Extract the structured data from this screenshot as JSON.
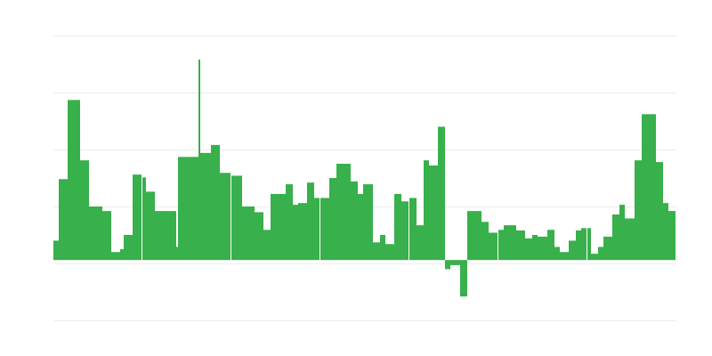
{
  "chart_data": {
    "type": "bar",
    "title": "",
    "xlabel": "",
    "ylabel": "",
    "grid": true,
    "bar_color": "#38b04b",
    "grid_color": "#ececec",
    "ylim": [
      -1.06,
      3.94
    ],
    "xlim": [
      0,
      350
    ],
    "bars": [
      {
        "x": 0,
        "w": 3,
        "y": 0.34
      },
      {
        "x": 3,
        "w": 5,
        "y": 1.42
      },
      {
        "x": 8,
        "w": 7,
        "y": 2.81
      },
      {
        "x": 15,
        "w": 5,
        "y": 1.75
      },
      {
        "x": 20,
        "w": 7.5,
        "y": 0.94
      },
      {
        "x": 27.5,
        "w": 5,
        "y": 0.86
      },
      {
        "x": 32.5,
        "w": 5,
        "y": 0.14
      },
      {
        "x": 37.5,
        "w": 2,
        "y": 0.19
      },
      {
        "x": 39.5,
        "w": 5,
        "y": 0.44
      },
      {
        "x": 44.5,
        "w": 5,
        "y": 1.5
      },
      {
        "x": 50,
        "w": 2,
        "y": 1.45
      },
      {
        "x": 52,
        "w": 5,
        "y": 1.2
      },
      {
        "x": 57,
        "w": 12,
        "y": 0.86
      },
      {
        "x": 69,
        "w": 1,
        "y": 0.23
      },
      {
        "x": 70,
        "w": 11.5,
        "y": 1.81
      },
      {
        "x": 81.5,
        "w": 1,
        "y": 3.52
      },
      {
        "x": 82.5,
        "w": 6,
        "y": 1.88
      },
      {
        "x": 88.5,
        "w": 5,
        "y": 2.02
      },
      {
        "x": 93.5,
        "w": 6,
        "y": 1.53
      },
      {
        "x": 100,
        "w": 6,
        "y": 1.48
      },
      {
        "x": 106,
        "w": 7,
        "y": 0.94
      },
      {
        "x": 113,
        "w": 5,
        "y": 0.84
      },
      {
        "x": 118,
        "w": 4,
        "y": 0.53
      },
      {
        "x": 122,
        "w": 8.5,
        "y": 1.16
      },
      {
        "x": 130.5,
        "w": 4,
        "y": 1.33
      },
      {
        "x": 134.5,
        "w": 3,
        "y": 0.97
      },
      {
        "x": 137.5,
        "w": 5,
        "y": 1.0
      },
      {
        "x": 142.5,
        "w": 4,
        "y": 1.36
      },
      {
        "x": 146.5,
        "w": 3,
        "y": 1.09
      },
      {
        "x": 150,
        "w": 5,
        "y": 1.09
      },
      {
        "x": 155,
        "w": 4,
        "y": 1.44
      },
      {
        "x": 159,
        "w": 8,
        "y": 1.69
      },
      {
        "x": 167,
        "w": 4,
        "y": 1.38
      },
      {
        "x": 171,
        "w": 3,
        "y": 1.16
      },
      {
        "x": 174,
        "w": 5.5,
        "y": 1.33
      },
      {
        "x": 179.5,
        "w": 4,
        "y": 0.31
      },
      {
        "x": 183.5,
        "w": 3,
        "y": 0.44
      },
      {
        "x": 186.5,
        "w": 5,
        "y": 0.28
      },
      {
        "x": 191.5,
        "w": 4,
        "y": 1.16
      },
      {
        "x": 195.5,
        "w": 4,
        "y": 1.03
      },
      {
        "x": 200,
        "w": 4,
        "y": 1.09
      },
      {
        "x": 204,
        "w": 4,
        "y": 0.61
      },
      {
        "x": 208,
        "w": 3,
        "y": 1.75
      },
      {
        "x": 211,
        "w": 5,
        "y": 1.66
      },
      {
        "x": 216,
        "w": 4,
        "y": 2.34
      },
      {
        "x": 220,
        "w": 3,
        "y": -0.16
      },
      {
        "x": 223,
        "w": 5.5,
        "y": -0.09
      },
      {
        "x": 228.5,
        "w": 4,
        "y": -0.64
      },
      {
        "x": 232.5,
        "w": 8,
        "y": 0.86
      },
      {
        "x": 240.5,
        "w": 4,
        "y": 0.67
      },
      {
        "x": 244.5,
        "w": 5,
        "y": 0.48
      },
      {
        "x": 250,
        "w": 3,
        "y": 0.53
      },
      {
        "x": 253,
        "w": 7,
        "y": 0.61
      },
      {
        "x": 260,
        "w": 5,
        "y": 0.52
      },
      {
        "x": 265,
        "w": 4,
        "y": 0.38
      },
      {
        "x": 269,
        "w": 3,
        "y": 0.44
      },
      {
        "x": 272,
        "w": 5.5,
        "y": 0.41
      },
      {
        "x": 277.5,
        "w": 4,
        "y": 0.53
      },
      {
        "x": 281.5,
        "w": 3,
        "y": 0.23
      },
      {
        "x": 284.5,
        "w": 5,
        "y": 0.14
      },
      {
        "x": 289.5,
        "w": 4,
        "y": 0.34
      },
      {
        "x": 293.5,
        "w": 3,
        "y": 0.52
      },
      {
        "x": 296.5,
        "w": 3,
        "y": 0.56
      },
      {
        "x": 300,
        "w": 2,
        "y": 0.56
      },
      {
        "x": 302,
        "w": 4,
        "y": 0.11
      },
      {
        "x": 306,
        "w": 3,
        "y": 0.23
      },
      {
        "x": 309,
        "w": 5,
        "y": 0.41
      },
      {
        "x": 314,
        "w": 4,
        "y": 0.8
      },
      {
        "x": 318,
        "w": 3,
        "y": 0.97
      },
      {
        "x": 321,
        "w": 5.5,
        "y": 0.73
      },
      {
        "x": 326.5,
        "w": 4,
        "y": 1.75
      },
      {
        "x": 330.5,
        "w": 8,
        "y": 2.56
      },
      {
        "x": 338.5,
        "w": 4,
        "y": 1.72
      },
      {
        "x": 342.5,
        "w": 3,
        "y": 1.0
      },
      {
        "x": 345.5,
        "w": 4,
        "y": 0.86
      }
    ]
  }
}
